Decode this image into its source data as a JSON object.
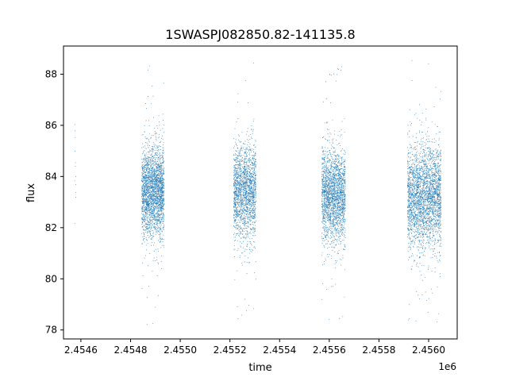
{
  "chart_data": {
    "type": "scatter",
    "title": "1SWASPJ082850.82-141135.8",
    "xlabel": "time",
    "ylabel": "flux",
    "x_offset_label": "1e6",
    "xlim": [
      2454530,
      2456115
    ],
    "ylim": [
      77.65,
      89.1
    ],
    "x_ticks": [
      2454600,
      2454800,
      2455000,
      2455200,
      2455400,
      2455600,
      2455800,
      2456000
    ],
    "x_tick_labels": [
      "2.4546",
      "2.4548",
      "2.4550",
      "2.4552",
      "2.4554",
      "2.4556",
      "2.4558",
      "2.4560"
    ],
    "y_ticks": [
      78,
      80,
      82,
      84,
      86,
      88
    ],
    "y_tick_labels": [
      "78",
      "80",
      "82",
      "84",
      "86",
      "88"
    ],
    "grid": false,
    "marker_size": "tiny",
    "observing_seasons": [
      {
        "x_range": [
          2454575,
          2454580
        ],
        "flux_center": 84.5,
        "flux_spread": 1.0,
        "approx_points": 12
      },
      {
        "x_range": [
          2454845,
          2454935
        ],
        "flux_center": 83.4,
        "flux_spread": 0.9,
        "approx_points": 2600,
        "flux_min": 78.2,
        "flux_max": 88.4
      },
      {
        "x_range": [
          2455215,
          2455305
        ],
        "flux_center": 83.4,
        "flux_spread": 0.9,
        "approx_points": 2000,
        "flux_min": 78.4,
        "flux_max": 88.5
      },
      {
        "x_range": [
          2455570,
          2455665
        ],
        "flux_center": 83.3,
        "flux_spread": 0.9,
        "approx_points": 2300,
        "flux_min": 78.4,
        "flux_max": 88.3
      },
      {
        "x_range": [
          2455915,
          2456050
        ],
        "flux_center": 83.2,
        "flux_spread": 1.0,
        "approx_points": 3000,
        "flux_min": 78.2,
        "flux_max": 88.6
      }
    ],
    "colors": {
      "points": "#1f77b4",
      "axes": "#000000",
      "background": "#ffffff"
    }
  }
}
